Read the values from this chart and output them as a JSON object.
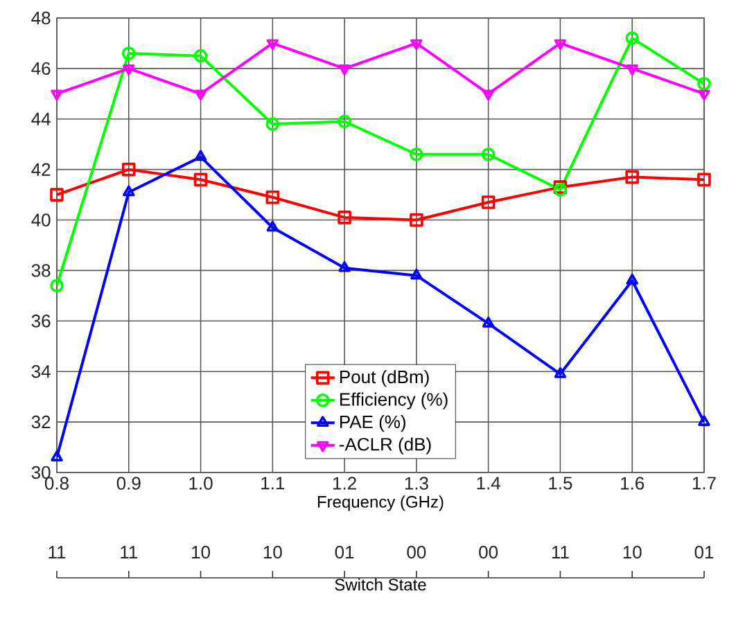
{
  "chart_data": {
    "type": "line",
    "xlabel": "Frequency (GHz)",
    "x": [
      0.8,
      0.9,
      1.0,
      1.1,
      1.2,
      1.3,
      1.4,
      1.5,
      1.6,
      1.7
    ],
    "series": [
      {
        "name": "Pout (dBm)",
        "color": "#ff0000",
        "marker": "square",
        "values": [
          41.0,
          42.0,
          41.6,
          40.9,
          40.1,
          40.0,
          40.7,
          41.3,
          41.7,
          41.6
        ]
      },
      {
        "name": "Efficiency (%)",
        "color": "#00ff00",
        "marker": "circle",
        "values": [
          37.4,
          46.6,
          46.5,
          43.8,
          43.9,
          42.6,
          42.6,
          41.2,
          47.2,
          45.4
        ]
      },
      {
        "name": "PAE (%)",
        "color": "#0000ff",
        "marker": "triangle",
        "values": [
          30.6,
          41.1,
          42.5,
          39.7,
          38.1,
          37.8,
          35.9,
          33.9,
          37.6,
          32.0
        ]
      },
      {
        "name": "-ACLR (dB)",
        "color": "#ff00ff",
        "marker": "triangle-down",
        "values": [
          45,
          46,
          45,
          47,
          46,
          47,
          45,
          47,
          46,
          45
        ]
      }
    ],
    "xlim": [
      0.8,
      1.7
    ],
    "xticks": [
      {
        "value": 0.8,
        "label": "0.8"
      },
      {
        "value": 0.9,
        "label": "0.9"
      },
      {
        "value": 1.0,
        "label": "1.0"
      },
      {
        "value": 1.1,
        "label": "1.1"
      },
      {
        "value": 1.2,
        "label": "1.2"
      },
      {
        "value": 1.3,
        "label": "1.3"
      },
      {
        "value": 1.4,
        "label": "1.4"
      },
      {
        "value": 1.5,
        "label": "1.5"
      },
      {
        "value": 1.6,
        "label": "1.6"
      },
      {
        "value": 1.7,
        "label": "1.7"
      }
    ],
    "ylim": [
      30,
      48
    ],
    "yticks": [
      30,
      32,
      34,
      36,
      38,
      40,
      42,
      44,
      46,
      48
    ],
    "x2label": "Switch State",
    "annotations": [
      "11",
      "11",
      "10",
      "10",
      "01",
      "00",
      "00",
      "11",
      "10",
      "01"
    ],
    "grid": true,
    "legend": "bottom",
    "line_style": "solid"
  }
}
